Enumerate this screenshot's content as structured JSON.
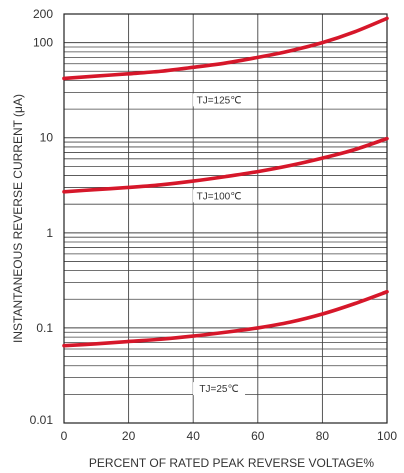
{
  "chart_data": {
    "type": "line",
    "title": "",
    "xlabel": "PERCENT OF RATED PEAK REVERSE VOLTAGE%",
    "ylabel": "INSTANTANEOUS REVERSE CURRENT (μA)",
    "xlim": [
      0,
      100
    ],
    "ylim": [
      0.01,
      200
    ],
    "yscale": "log",
    "grid": true,
    "x_ticks": [
      "0",
      "20",
      "40",
      "60",
      "80",
      "100"
    ],
    "y_ticks": [
      "0.01",
      "0.1",
      "1",
      "10",
      "100",
      "200"
    ],
    "line_color": "#d6172a",
    "series": [
      {
        "name": "TJ=125℃",
        "x": [
          0,
          10,
          20,
          30,
          40,
          50,
          60,
          70,
          80,
          90,
          100
        ],
        "y": [
          42,
          44.5,
          47,
          50,
          55,
          61,
          70,
          82,
          100,
          130,
          180
        ]
      },
      {
        "name": "TJ=100℃",
        "x": [
          0,
          10,
          20,
          30,
          40,
          50,
          60,
          70,
          80,
          90,
          100
        ],
        "y": [
          2.7,
          2.85,
          3.0,
          3.2,
          3.5,
          3.9,
          4.4,
          5.1,
          6.1,
          7.5,
          9.8
        ]
      },
      {
        "name": "TJ=25℃",
        "x": [
          0,
          10,
          20,
          30,
          40,
          50,
          60,
          70,
          80,
          90,
          100
        ],
        "y": [
          0.065,
          0.068,
          0.072,
          0.076,
          0.082,
          0.09,
          0.1,
          0.115,
          0.14,
          0.18,
          0.24
        ]
      }
    ],
    "annotations": [
      {
        "text": "TJ=125℃",
        "x": 48,
        "y": 25
      },
      {
        "text": "TJ=100℃",
        "x": 48,
        "y": 2.45
      },
      {
        "text": "TJ=25℃",
        "x": 48,
        "y": 0.023
      }
    ]
  }
}
